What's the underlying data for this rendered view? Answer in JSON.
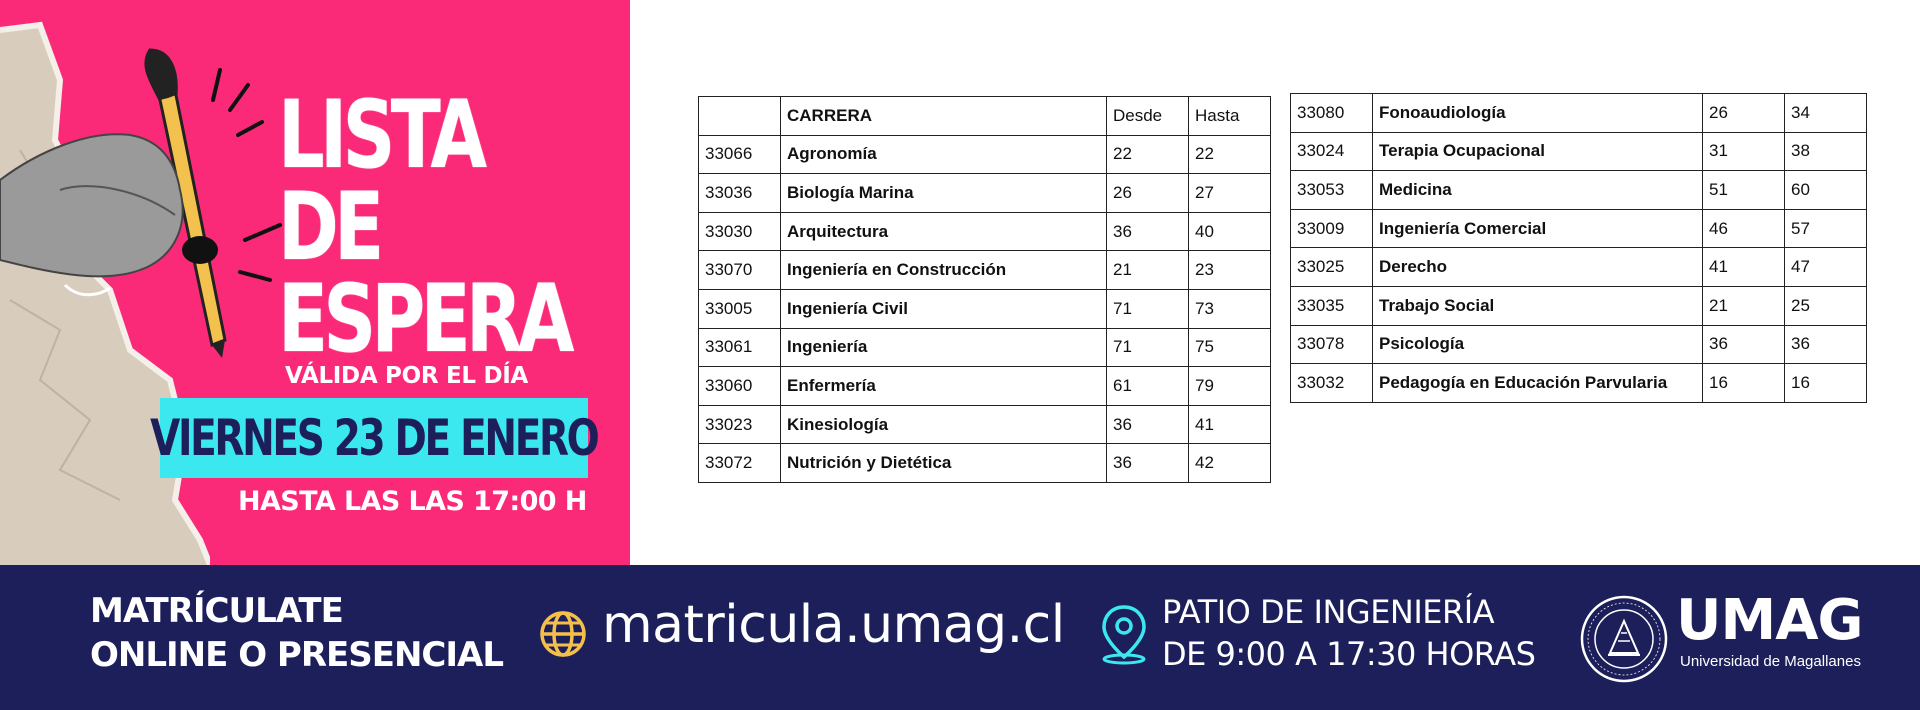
{
  "banner": {
    "title_line1": "LISTA DE",
    "title_line2": "ESPERA",
    "valid_label": "VÁLIDA POR EL DÍA",
    "date": "VIERNES 23 DE ENERO",
    "until": "HASTA LAS LAS 17:00 H",
    "colors": {
      "pink": "#fb2a78",
      "cyan": "#3ce8f0",
      "navy": "#1d1f5b",
      "yellow": "#f5c04a"
    }
  },
  "table_left": {
    "headers": [
      "",
      "CARRERA",
      "Desde",
      "Hasta"
    ],
    "rows": [
      [
        "33066",
        "Agronomía",
        "22",
        "22"
      ],
      [
        "33036",
        "Biología Marina",
        "26",
        "27"
      ],
      [
        "33030",
        "Arquitectura",
        "36",
        "40"
      ],
      [
        "33070",
        "Ingeniería en Construcción",
        "21",
        "23"
      ],
      [
        "33005",
        "Ingeniería Civil",
        "71",
        "73"
      ],
      [
        "33061",
        "Ingeniería",
        "71",
        "75"
      ],
      [
        "33060",
        "Enfermería",
        "61",
        "79"
      ],
      [
        "33023",
        "Kinesiología",
        "36",
        "41"
      ],
      [
        "33072",
        "Nutrición y Dietética",
        "36",
        "42"
      ]
    ]
  },
  "table_right": {
    "rows": [
      [
        "33080",
        "Fonoaudiología",
        "26",
        "34"
      ],
      [
        "33024",
        "Terapia Ocupacional",
        "31",
        "38"
      ],
      [
        "33053",
        "Medicina",
        "51",
        "60"
      ],
      [
        "33009",
        "Ingeniería Comercial",
        "46",
        "57"
      ],
      [
        "33025",
        "Derecho",
        "41",
        "47"
      ],
      [
        "33035",
        "Trabajo Social",
        "21",
        "25"
      ],
      [
        "33078",
        "Psicología",
        "36",
        "36"
      ],
      [
        "33032",
        "Pedagogía en Educación Parvularia",
        "16",
        "16"
      ]
    ]
  },
  "footer": {
    "enroll_line1": "MATRÍCULATE",
    "enroll_line2": "ONLINE O PRESENCIAL",
    "website": "matricula.umag.cl",
    "place_line1": "PATIO DE INGENIERÍA",
    "place_line2": "DE 9:00 A 17:30 HORAS",
    "brand": "UMAG",
    "brand_sub": "Universidad de Magallanes",
    "icons": [
      "globe-icon",
      "location-pin-icon",
      "university-seal-icon"
    ]
  }
}
